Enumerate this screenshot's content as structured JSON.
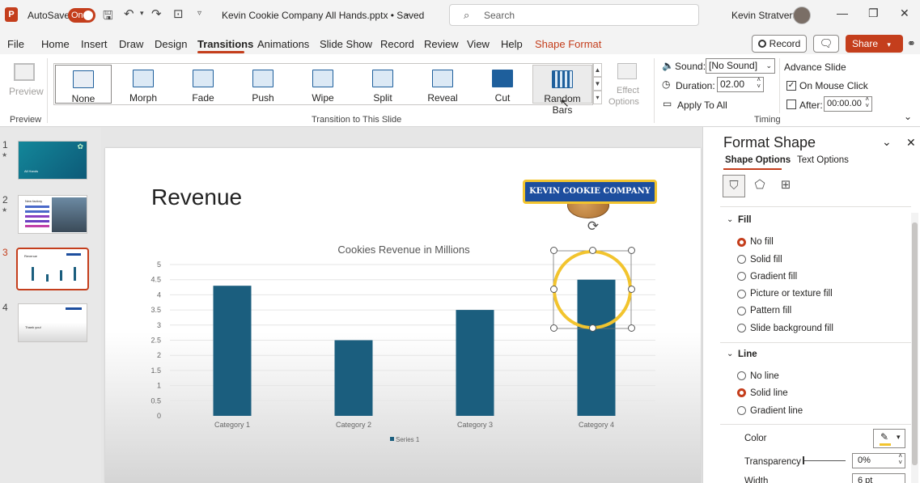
{
  "titlebar": {
    "autosave_label": "AutoSave",
    "autosave_state": "On",
    "doc_title": "Kevin Cookie Company All Hands.pptx • Saved",
    "search_placeholder": "Search",
    "user_name": "Kevin Stratvert"
  },
  "menu": {
    "items": [
      "File",
      "Home",
      "Insert",
      "Draw",
      "Design",
      "Transitions",
      "Animations",
      "Slide Show",
      "Record",
      "Review",
      "View",
      "Help",
      "Shape Format"
    ],
    "active": "Transitions",
    "record_label": "Record",
    "share_label": "Share"
  },
  "ribbon": {
    "preview_label": "Preview",
    "preview_group": "Preview",
    "transitions": [
      "None",
      "Morph",
      "Fade",
      "Push",
      "Wipe",
      "Split",
      "Reveal",
      "Cut",
      "Random Bars"
    ],
    "effect_options": [
      "Effect",
      "Options"
    ],
    "transition_group": "Transition to This Slide",
    "sound_label": "Sound:",
    "sound_value": "[No Sound]",
    "duration_label": "Duration:",
    "duration_value": "02.00",
    "apply_all_label": "Apply To All",
    "advance_label": "Advance Slide",
    "on_click_label": "On Mouse Click",
    "after_label": "After:",
    "after_value": "00:00.00",
    "timing_group": "Timing"
  },
  "slides": {
    "numbers": [
      "1",
      "2",
      "3",
      "4"
    ],
    "thumb1_title": "All Hands",
    "thumb2_title": "New factory",
    "thumb3_title": "Revenue",
    "thumb4_title": "Thank you!"
  },
  "slide": {
    "title": "Revenue",
    "logo_text": "KEVIN COOKIE COMPANY"
  },
  "chart_data": {
    "type": "bar",
    "title": "Cookies Revenue in Millions",
    "categories": [
      "Category 1",
      "Category 2",
      "Category 3",
      "Category 4"
    ],
    "series": [
      {
        "name": "Series 1",
        "values": [
          4.3,
          2.5,
          3.5,
          4.5
        ]
      }
    ],
    "ylim": [
      0,
      5
    ],
    "yticks": [
      "0",
      "0.5",
      "1",
      "1.5",
      "2",
      "2.5",
      "3",
      "3.5",
      "4",
      "4.5",
      "5"
    ],
    "grid": true,
    "legend": "bottom",
    "color": "#1b5e7e"
  },
  "format_pane": {
    "title": "Format Shape",
    "tabs": [
      "Shape Options",
      "Text Options"
    ],
    "fill_header": "Fill",
    "fill_options": [
      "No fill",
      "Solid fill",
      "Gradient fill",
      "Picture or texture fill",
      "Pattern fill",
      "Slide background fill"
    ],
    "fill_selected": 0,
    "line_header": "Line",
    "line_options": [
      "No line",
      "Solid line",
      "Gradient line"
    ],
    "line_selected": 1,
    "color_label": "Color",
    "transparency_label": "Transparency",
    "transparency_value": "0%",
    "width_label": "Width",
    "width_value": "6 pt"
  }
}
